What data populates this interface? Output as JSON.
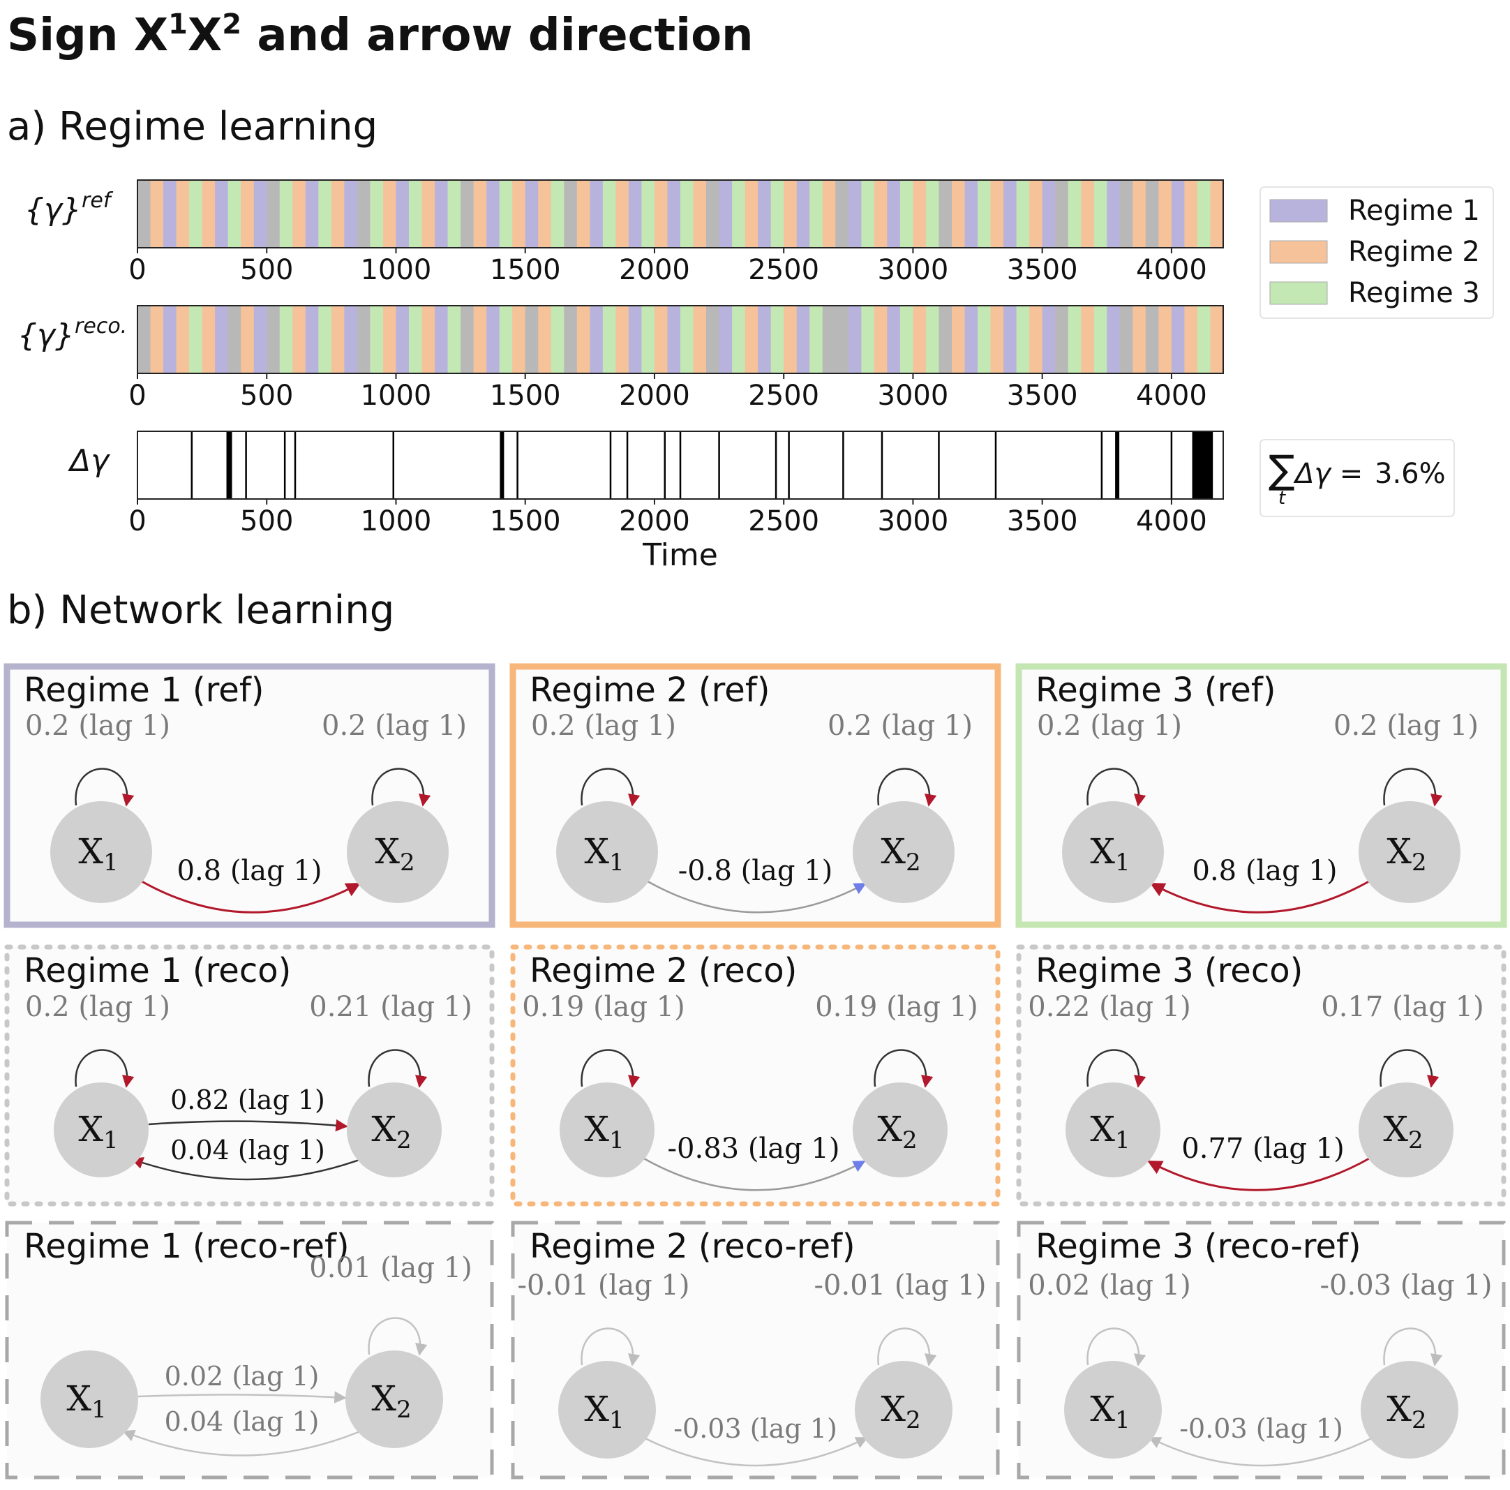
{
  "title": {
    "prefix": "Sign X",
    "sup1": "1",
    "mid": "X",
    "sup2": "2",
    "suffix": " and arrow direction"
  },
  "section_a": {
    "label": "a) Regime learning"
  },
  "section_b": {
    "label": "b) Network learning"
  },
  "colors": {
    "regime1": "#b8b3dc",
    "regime2": "#f5c29a",
    "regime3": "#c3e8b4",
    "gray": "#b8b8b8",
    "red_edge": "#b2182b",
    "blue_arrow": "#6f7ee8",
    "node": "#d0d0d0",
    "ref_border_1": "#b4b2cc",
    "ref_border_2": "#f7b77a",
    "ref_border_3": "#c4e6b2"
  },
  "legend": {
    "items": [
      "Regime 1",
      "Regime 2",
      "Regime 3"
    ]
  },
  "strips": {
    "ref_label": {
      "base": "{γ}",
      "sup": "ref"
    },
    "reco_label": {
      "base": "{γ}",
      "sup": "reco."
    },
    "delta_label": "Δγ",
    "ticks": [
      "0",
      "500",
      "1000",
      "1500",
      "2000",
      "2500",
      "3000",
      "3500",
      "4000"
    ],
    "tick_values": [
      0,
      500,
      1000,
      1500,
      2000,
      2500,
      3000,
      3500,
      4000
    ],
    "xmax": 4200,
    "xlabel": "Time",
    "segment_width": 50,
    "ref_sequence": "GBABCBACBAGCBACBAGCBACBACGBACBABCGBACBACBACBGACBACBACBGACBACBCGBACBACBAGCBCAGB",
    "delta_lines": [
      210,
      355,
      420,
      570,
      610,
      990,
      1410,
      1470,
      1830,
      1895,
      2040,
      2100,
      2250,
      2470,
      2520,
      2730,
      2880,
      3100,
      3320,
      3730,
      3790,
      4000
    ],
    "delta_thick": [
      [
        355,
        8
      ],
      [
        1410,
        6
      ],
      [
        3790,
        6
      ]
    ],
    "delta_block": [
      4080,
      4160
    ],
    "sum_label": "Δγ =",
    "sum_value": "3.6%"
  },
  "panels": [
    {
      "title": "Regime 1 (ref)",
      "self1": "0.2 (lag 1)",
      "self2": "0.2 (lag 1)",
      "cross_top": "0.8 (lag 1)",
      "cross_bottom": ""
    },
    {
      "title": "Regime 2 (ref)",
      "self1": "0.2 (lag 1)",
      "self2": "0.2 (lag 1)",
      "cross_top": "",
      "cross_bottom": "-0.8 (lag 1)"
    },
    {
      "title": "Regime 3 (ref)",
      "self1": "0.2 (lag 1)",
      "self2": "0.2 (lag 1)",
      "cross_top": "",
      "cross_bottom": "0.8 (lag 1)"
    },
    {
      "title": "Regime 1 (reco)",
      "self1": "0.2 (lag 1)",
      "self2": "0.21 (lag 1)",
      "cross_top": "0.82 (lag 1)",
      "cross_bottom": "0.04 (lag 1)"
    },
    {
      "title": "Regime 2 (reco)",
      "self1": "0.19 (lag 1)",
      "self2": "0.19 (lag 1)",
      "cross_top": "",
      "cross_bottom": "-0.83 (lag 1)"
    },
    {
      "title": "Regime 3 (reco)",
      "self1": "0.22 (lag 1)",
      "self2": "0.17 (lag 1)",
      "cross_top": "",
      "cross_bottom": "0.77 (lag 1)"
    },
    {
      "title": "Regime 1 (reco-ref)",
      "self1": "",
      "self2": "0.01 (lag 1)",
      "cross_top": "0.02 (lag 1)",
      "cross_bottom": "0.04 (lag 1)"
    },
    {
      "title": "Regime 2 (reco-ref)",
      "self1": "-0.01 (lag 1)",
      "self2": "-0.01 (lag 1)",
      "cross_top": "",
      "cross_bottom": "-0.03 (lag 1)"
    },
    {
      "title": "Regime 3 (reco-ref)",
      "self1": "0.02 (lag 1)",
      "self2": "-0.03 (lag 1)",
      "cross_top": "",
      "cross_bottom": "-0.03 (lag 1)"
    }
  ],
  "node_labels": {
    "x1": "X",
    "x1_sub": "1",
    "x2": "X",
    "x2_sub": "2"
  }
}
